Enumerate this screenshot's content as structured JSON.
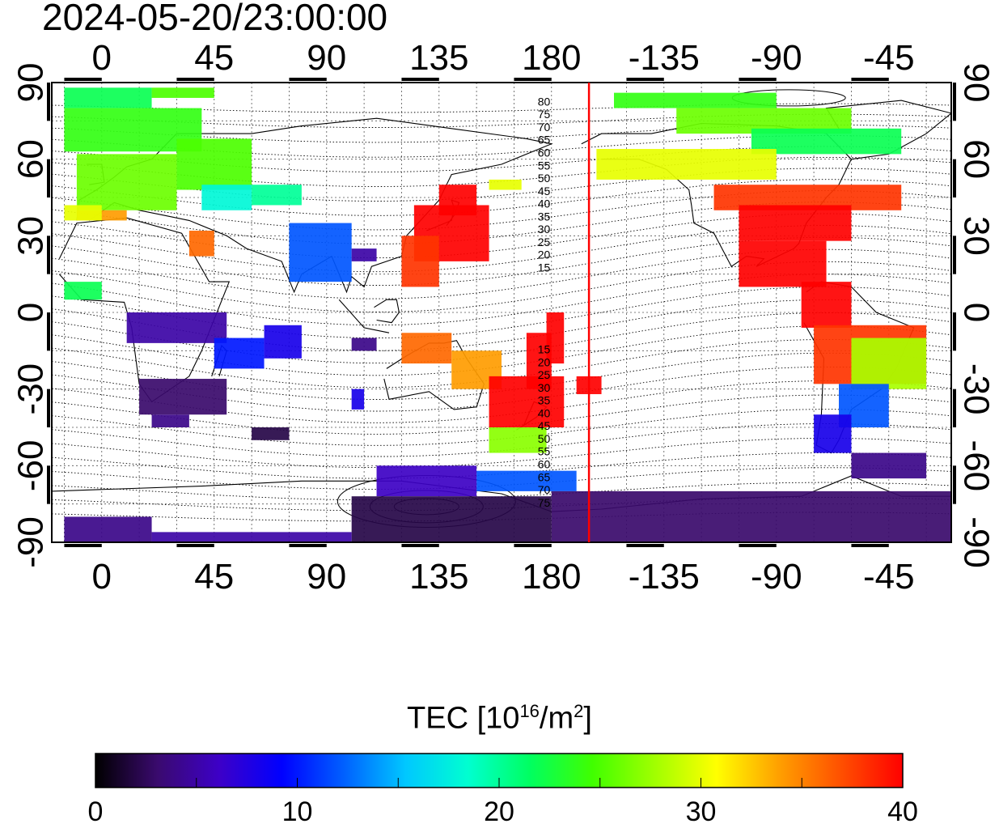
{
  "header": {
    "timestamp": "2024-05-20/23:00:00"
  },
  "map": {
    "projection": "equirectangular",
    "lon_range_east": [
      -20,
      340
    ],
    "lat_range": [
      -90,
      90
    ],
    "top_lon_labels": [
      "0",
      "45",
      "90",
      "135",
      "180",
      "-135",
      "-90",
      "-45"
    ],
    "bottom_lon_labels": [
      "0",
      "45",
      "90",
      "135",
      "180",
      "-135",
      "-90",
      "-45"
    ],
    "left_lat_labels": [
      "90",
      "60",
      "30",
      "0",
      "-30",
      "-60",
      "-90"
    ],
    "right_lat_labels": [
      "90",
      "60",
      "30",
      "0",
      "-30",
      "-60",
      "-90"
    ],
    "terminator_line_lon": 195,
    "terminator_color": "#ff0000",
    "magnetic_lat_labels_north": [
      "80",
      "75",
      "70",
      "65",
      "60",
      "55",
      "50",
      "45",
      "40",
      "35",
      "30",
      "25",
      "20",
      "15"
    ],
    "magnetic_lat_labels_south": [
      "15",
      "20",
      "25",
      "30",
      "35",
      "40",
      "45",
      "50",
      "55",
      "60",
      "65",
      "70",
      "75"
    ]
  },
  "colorbar": {
    "label_prefix": "TEC  [10",
    "label_exp": "16",
    "label_mid": "/m",
    "label_exp2": "2",
    "label_suffix": "]",
    "min": 0,
    "max": 40,
    "ticks": [
      "0",
      "10",
      "20",
      "30",
      "40"
    ],
    "colors": [
      "#000000",
      "#3a0a6e",
      "#3d00c8",
      "#0000ff",
      "#0060ff",
      "#00c8ff",
      "#00ffd0",
      "#00ff60",
      "#40ff00",
      "#a0ff00",
      "#ffff00",
      "#ffa000",
      "#ff5000",
      "#ff0000"
    ]
  }
}
